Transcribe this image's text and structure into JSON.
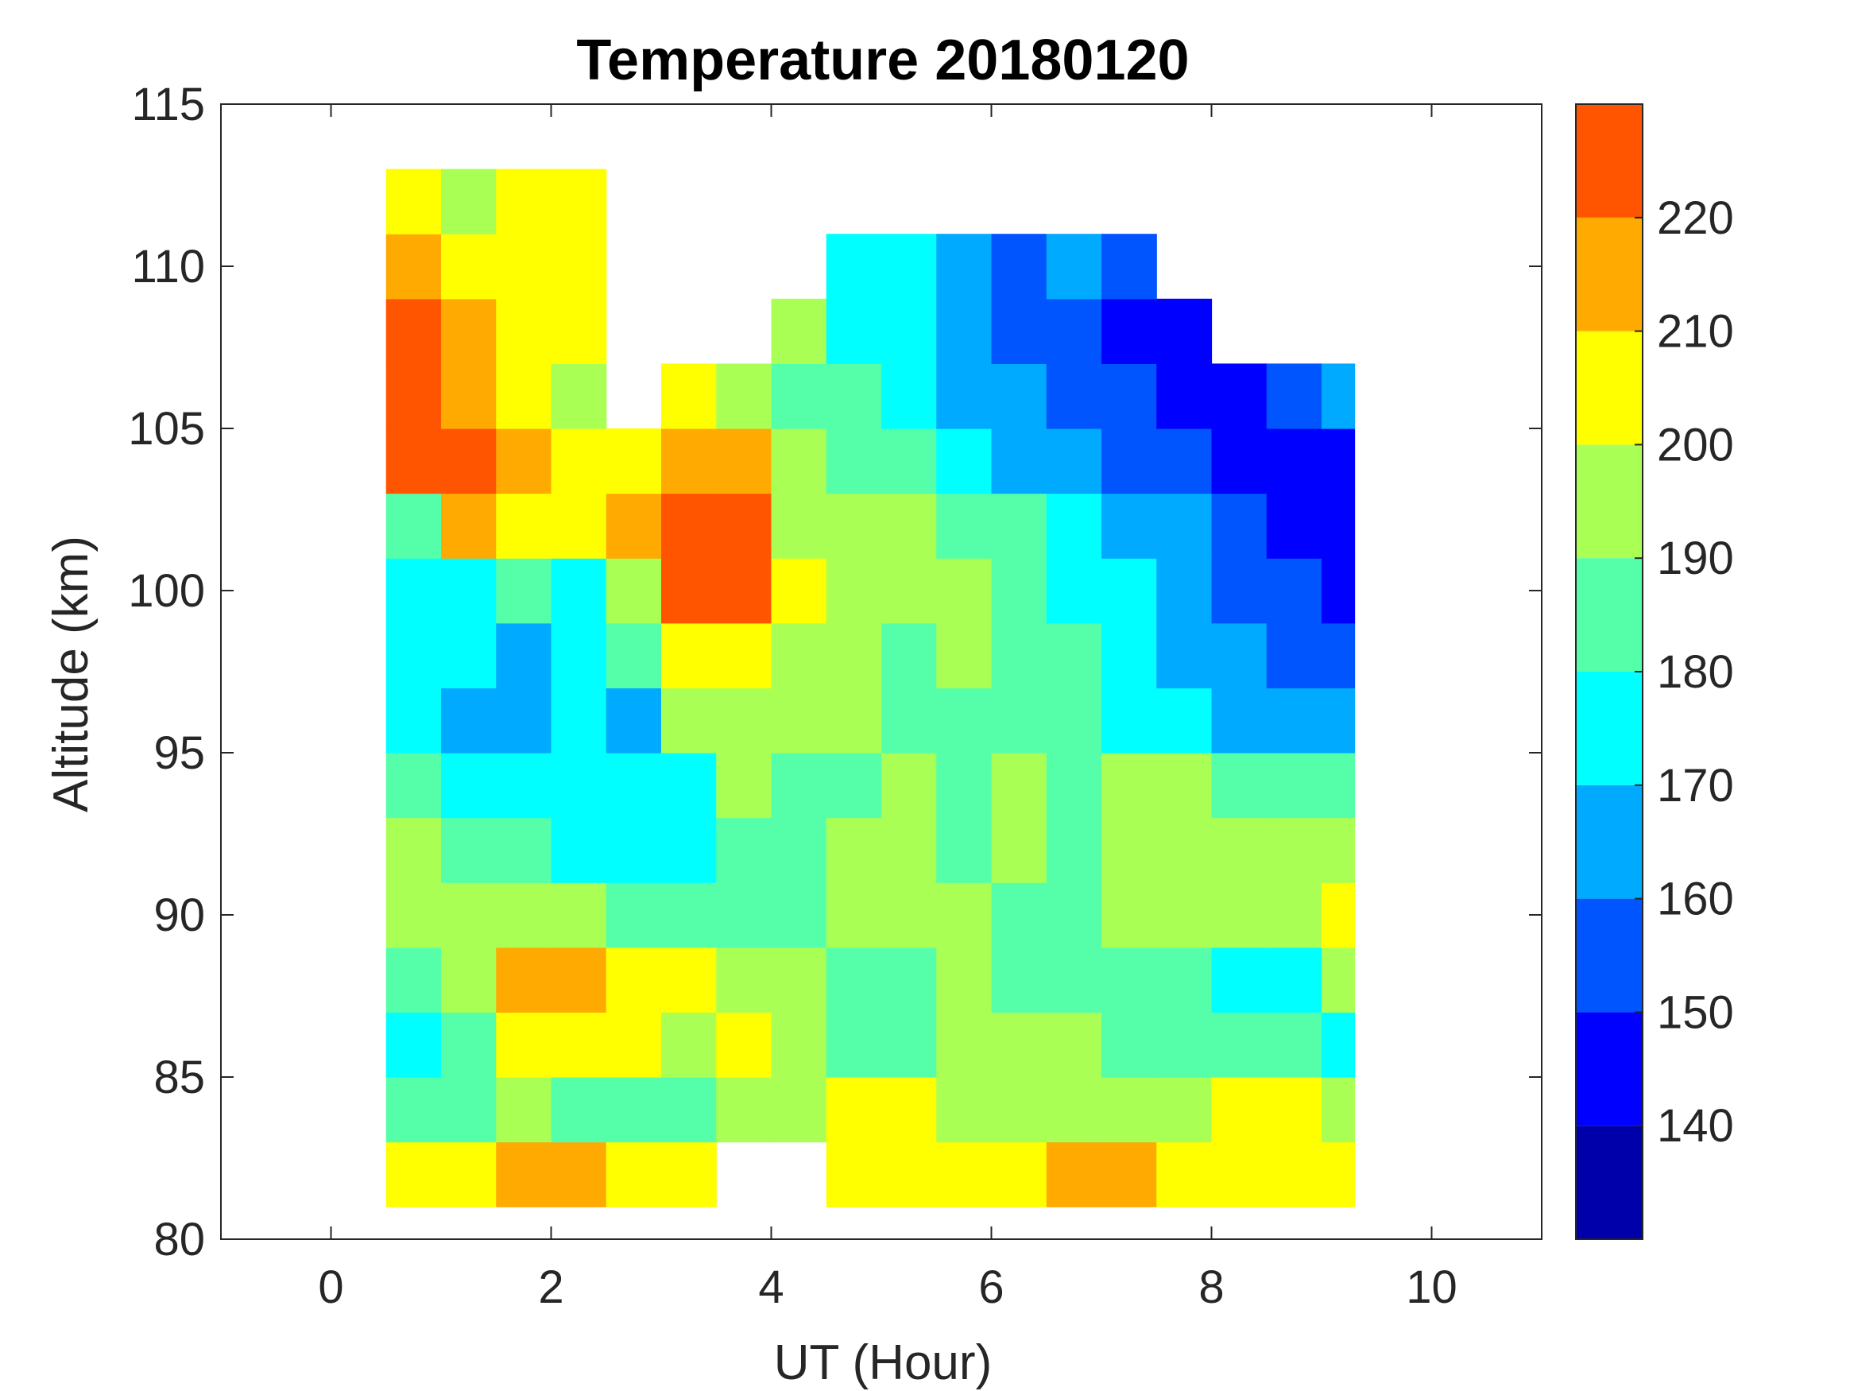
{
  "chart_data": {
    "type": "heatmap",
    "subtype": "filled-contour",
    "title": "Temperature 20180120",
    "xlabel": "UT (Hour)",
    "ylabel": "Altitude (km)",
    "xlim": [
      -1,
      11
    ],
    "ylim": [
      80,
      115
    ],
    "xticks": [
      "0",
      "2",
      "4",
      "6",
      "8",
      "10"
    ],
    "xtick_values": [
      0,
      2,
      4,
      6,
      8,
      10
    ],
    "yticks": [
      "80",
      "85",
      "90",
      "95",
      "100",
      "105",
      "110",
      "115"
    ],
    "ytick_values": [
      80,
      85,
      90,
      95,
      100,
      105,
      110,
      115
    ],
    "colorbar": {
      "range": [
        130,
        230
      ],
      "ticks": [
        "140",
        "150",
        "160",
        "170",
        "180",
        "190",
        "200",
        "210",
        "220"
      ],
      "tick_values": [
        140,
        150,
        160,
        170,
        180,
        190,
        200,
        210,
        220
      ],
      "levels": [
        130,
        140,
        150,
        160,
        170,
        180,
        190,
        200,
        210,
        220,
        230
      ],
      "colors": [
        "#0000aa",
        "#0000ff",
        "#0055ff",
        "#00aaff",
        "#00ffff",
        "#55ffaa",
        "#aaff55",
        "#ffff00",
        "#ffaa00",
        "#ff5500"
      ]
    },
    "grid": {
      "x_start": 0.5,
      "x_step": 0.5,
      "y_start": 81,
      "y_step": 2,
      "x_centers_hours": [
        0.75,
        1.25,
        1.75,
        2.25,
        2.75,
        3.25,
        3.75,
        4.25,
        4.75,
        5.25,
        5.75,
        6.25,
        6.75,
        7.25,
        7.75,
        8.25,
        8.75,
        9.25
      ],
      "rows_altitude_centers_km": [
        82,
        84,
        86,
        88,
        90,
        92,
        94,
        96,
        98,
        100,
        102,
        104,
        106,
        108,
        110,
        112
      ],
      "temperature_K": [
        [
          202,
          205,
          210,
          210,
          205,
          200,
          null,
          null,
          205,
          200,
          205,
          208,
          215,
          212,
          205,
          205,
          205,
          205
        ],
        [
          185,
          185,
          192,
          185,
          185,
          188,
          192,
          198,
          205,
          200,
          198,
          195,
          192,
          192,
          195,
          200,
          202,
          195
        ],
        [
          175,
          185,
          202,
          205,
          200,
          195,
          200,
          195,
          185,
          180,
          192,
          198,
          192,
          188,
          185,
          185,
          180,
          175
        ],
        [
          185,
          192,
          212,
          212,
          205,
          200,
          192,
          190,
          185,
          185,
          190,
          185,
          185,
          185,
          182,
          175,
          178,
          190
        ],
        [
          192,
          195,
          198,
          190,
          188,
          185,
          185,
          182,
          195,
          192,
          190,
          185,
          185,
          195,
          195,
          192,
          195,
          205
        ],
        [
          192,
          188,
          185,
          178,
          175,
          172,
          185,
          185,
          192,
          190,
          188,
          192,
          188,
          192,
          195,
          195,
          192,
          195
        ],
        [
          182,
          176,
          172,
          172,
          172,
          175,
          190,
          188,
          185,
          190,
          185,
          192,
          188,
          192,
          190,
          185,
          182,
          180
        ],
        [
          178,
          168,
          162,
          172,
          165,
          190,
          195,
          192,
          190,
          185,
          185,
          185,
          182,
          178,
          172,
          168,
          165,
          162
        ],
        [
          178,
          172,
          168,
          175,
          185,
          205,
          200,
          195,
          190,
          185,
          190,
          185,
          180,
          172,
          165,
          160,
          155,
          150
        ],
        [
          175,
          178,
          185,
          178,
          195,
          222,
          222,
          200,
          195,
          195,
          192,
          188,
          178,
          170,
          160,
          155,
          150,
          145
        ],
        [
          185,
          215,
          205,
          200,
          215,
          222,
          222,
          195,
          190,
          190,
          185,
          180,
          172,
          165,
          160,
          150,
          145,
          142
        ],
        [
          225,
          222,
          210,
          200,
          205,
          212,
          210,
          190,
          185,
          180,
          175,
          168,
          162,
          155,
          150,
          145,
          142,
          142
        ],
        [
          225,
          215,
          205,
          195,
          null,
          205,
          190,
          185,
          180,
          172,
          168,
          160,
          155,
          150,
          140,
          145,
          155,
          160
        ],
        [
          225,
          210,
          200,
          205,
          null,
          null,
          null,
          190,
          175,
          172,
          165,
          155,
          152,
          148,
          145,
          null,
          null,
          null
        ],
        [
          215,
          205,
          200,
          200,
          null,
          null,
          null,
          null,
          175,
          172,
          165,
          155,
          160,
          150,
          null,
          null,
          null,
          null
        ],
        [
          205,
          195,
          205,
          205,
          null,
          null,
          null,
          null,
          null,
          null,
          null,
          null,
          null,
          null,
          null,
          null,
          null,
          null
        ]
      ]
    }
  }
}
